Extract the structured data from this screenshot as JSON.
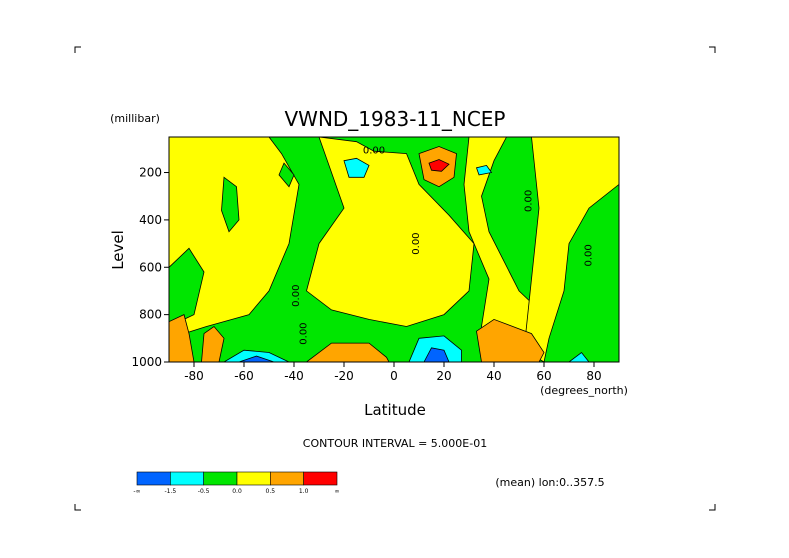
{
  "chart_data": {
    "type": "heatmap",
    "title": "VWND_1983-11_NCEP",
    "xlabel": "Latitude",
    "ylabel": "Level",
    "x_unit": "(degrees_north)",
    "y_unit": "(millibar)",
    "xlim": [
      -90,
      90
    ],
    "ylim": [
      1000,
      50
    ],
    "x_ticks": [
      -80,
      -60,
      -40,
      -20,
      0,
      20,
      40,
      60,
      80
    ],
    "x_tick_labels": [
      "-80",
      "-60",
      "-40",
      "-20",
      "0",
      "20",
      "40",
      "60",
      "80"
    ],
    "y_ticks": [
      200,
      400,
      600,
      800,
      1000
    ],
    "y_tick_labels": [
      "200",
      "400",
      "600",
      "800",
      "1000"
    ],
    "contour_interval_text": "CONTOUR INTERVAL = 5.000E-01",
    "mean_text": "(mean) lon:0..357.5",
    "contour_labels": [
      {
        "text": "0.00",
        "lat": -8,
        "lev": 120
      },
      {
        "text": "0.00",
        "lat": 55,
        "lev": 320
      },
      {
        "text": "0.00",
        "lat": 10,
        "lev": 500
      },
      {
        "text": "0.00",
        "lat": 79,
        "lev": 550
      },
      {
        "text": "0.00",
        "lat": -38,
        "lev": 720
      },
      {
        "text": "0.00",
        "lat": -35,
        "lev": 880
      }
    ],
    "colorbar": {
      "colors": [
        "#0064ff",
        "#00ffff",
        "#00e600",
        "#ffff00",
        "#ffa500",
        "#ff0000"
      ],
      "labels": [
        "-∞",
        "-1.5",
        "-0.5",
        "0.0",
        "0.5",
        "1.0",
        "∞"
      ]
    },
    "regions": [
      {
        "color": "#00e600",
        "lev_top": 50,
        "lev_bottom": 1000,
        "lat_min": -90,
        "lat_max": 90
      },
      {
        "color": "#ffff00",
        "points": [
          [
            -90,
            50
          ],
          [
            -50,
            50
          ],
          [
            -45,
            120
          ],
          [
            -38,
            250
          ],
          [
            -42,
            500
          ],
          [
            -50,
            700
          ],
          [
            -58,
            800
          ],
          [
            -75,
            850
          ],
          [
            -90,
            900
          ]
        ]
      },
      {
        "color": "#ffff00",
        "points": [
          [
            -30,
            50
          ],
          [
            -15,
            70
          ],
          [
            -8,
            110
          ],
          [
            5,
            120
          ],
          [
            10,
            250
          ],
          [
            22,
            380
          ],
          [
            32,
            500
          ],
          [
            30,
            700
          ],
          [
            20,
            800
          ],
          [
            5,
            850
          ],
          [
            -10,
            820
          ],
          [
            -25,
            780
          ],
          [
            -35,
            700
          ],
          [
            -30,
            500
          ],
          [
            -20,
            350
          ],
          [
            -25,
            200
          ]
        ]
      },
      {
        "color": "#ffff00",
        "points": [
          [
            30,
            50
          ],
          [
            45,
            50
          ],
          [
            40,
            150
          ],
          [
            35,
            300
          ],
          [
            38,
            450
          ],
          [
            50,
            700
          ],
          [
            60,
            800
          ],
          [
            55,
            1000
          ],
          [
            40,
            1000
          ],
          [
            35,
            850
          ],
          [
            38,
            650
          ],
          [
            30,
            450
          ],
          [
            28,
            250
          ]
        ]
      },
      {
        "color": "#ffff00",
        "points": [
          [
            55,
            50
          ],
          [
            90,
            50
          ],
          [
            90,
            250
          ],
          [
            78,
            350
          ],
          [
            70,
            500
          ],
          [
            68,
            700
          ],
          [
            62,
            900
          ],
          [
            60,
            1000
          ],
          [
            52,
            950
          ],
          [
            55,
            650
          ],
          [
            58,
            350
          ]
        ]
      },
      {
        "color": "#00e600",
        "points": [
          [
            -68,
            220
          ],
          [
            -63,
            260
          ],
          [
            -62,
            400
          ],
          [
            -66,
            450
          ],
          [
            -69,
            360
          ]
        ]
      },
      {
        "color": "#00e600",
        "points": [
          [
            -90,
            600
          ],
          [
            -82,
            520
          ],
          [
            -76,
            620
          ],
          [
            -80,
            800
          ],
          [
            -90,
            850
          ]
        ]
      },
      {
        "color": "#00e600",
        "points": [
          [
            -44,
            160
          ],
          [
            -40,
            210
          ],
          [
            -42,
            260
          ],
          [
            -46,
            210
          ]
        ]
      },
      {
        "color": "#00ffff",
        "points": [
          [
            -20,
            150
          ],
          [
            -15,
            140
          ],
          [
            -10,
            170
          ],
          [
            -12,
            220
          ],
          [
            -18,
            220
          ]
        ]
      },
      {
        "color": "#00ffff",
        "points": [
          [
            33,
            180
          ],
          [
            37,
            170
          ],
          [
            39,
            200
          ],
          [
            34,
            210
          ]
        ]
      },
      {
        "color": "#ffa500",
        "points": [
          [
            10,
            120
          ],
          [
            18,
            90
          ],
          [
            25,
            120
          ],
          [
            24,
            220
          ],
          [
            18,
            260
          ],
          [
            12,
            230
          ]
        ]
      },
      {
        "color": "#ff0000",
        "points": [
          [
            14,
            160
          ],
          [
            18,
            145
          ],
          [
            22,
            165
          ],
          [
            19,
            195
          ],
          [
            15,
            190
          ]
        ]
      },
      {
        "color": "#ffa500",
        "points": [
          [
            -90,
            830
          ],
          [
            -84,
            800
          ],
          [
            -82,
            880
          ],
          [
            -80,
            1000
          ],
          [
            -90,
            1000
          ]
        ]
      },
      {
        "color": "#ffa500",
        "points": [
          [
            -76,
            880
          ],
          [
            -72,
            850
          ],
          [
            -68,
            900
          ],
          [
            -70,
            1000
          ],
          [
            -77,
            1000
          ]
        ]
      },
      {
        "color": "#ffa500",
        "points": [
          [
            -35,
            1000
          ],
          [
            -25,
            920
          ],
          [
            -10,
            920
          ],
          [
            -3,
            980
          ],
          [
            -2,
            1000
          ]
        ]
      },
      {
        "color": "#ffa500",
        "points": [
          [
            33,
            870
          ],
          [
            40,
            820
          ],
          [
            55,
            880
          ],
          [
            60,
            960
          ],
          [
            58,
            1000
          ],
          [
            35,
            1000
          ]
        ]
      },
      {
        "color": "#00ffff",
        "points": [
          [
            -68,
            1000
          ],
          [
            -60,
            950
          ],
          [
            -50,
            960
          ],
          [
            -42,
            1000
          ]
        ]
      },
      {
        "color": "#0064ff",
        "points": [
          [
            -62,
            1000
          ],
          [
            -55,
            975
          ],
          [
            -48,
            1000
          ]
        ]
      },
      {
        "color": "#00ffff",
        "points": [
          [
            6,
            1000
          ],
          [
            10,
            900
          ],
          [
            20,
            890
          ],
          [
            27,
            950
          ],
          [
            27,
            1000
          ]
        ]
      },
      {
        "color": "#0064ff",
        "points": [
          [
            12,
            1000
          ],
          [
            15,
            940
          ],
          [
            20,
            950
          ],
          [
            22,
            1000
          ]
        ]
      },
      {
        "color": "#00ffff",
        "points": [
          [
            70,
            1000
          ],
          [
            75,
            960
          ],
          [
            78,
            1000
          ]
        ]
      }
    ]
  }
}
